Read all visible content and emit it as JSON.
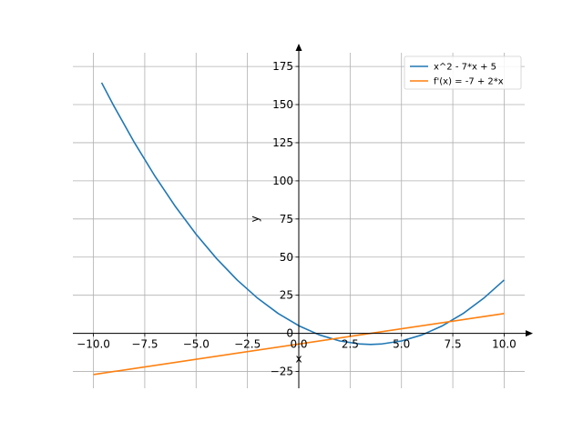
{
  "chart_data": {
    "type": "line",
    "title": "",
    "xlabel": "x",
    "ylabel": "y",
    "xlim": [
      -11.0,
      11.0
    ],
    "ylim": [
      -36.0,
      184.0
    ],
    "x_ticks": [
      -10.0,
      -7.5,
      -5.0,
      -2.5,
      0.0,
      2.5,
      5.0,
      7.5,
      10.0
    ],
    "x_tick_labels": [
      "−10.0",
      "−7.5",
      "−5.0",
      "−2.5",
      "0.0",
      "2.5",
      "5.0",
      "7.5",
      "10.0"
    ],
    "y_ticks": [
      -25,
      0,
      25,
      50,
      75,
      100,
      125,
      150,
      175
    ],
    "y_tick_labels": [
      "−25",
      "0",
      "25",
      "50",
      "75",
      "100",
      "125",
      "150",
      "175"
    ],
    "grid": true,
    "legend_position": "top-right",
    "series": [
      {
        "name": "x^2 - 7*x + 5",
        "color": "#1f77b4",
        "x": [
          -9.6,
          -9.0,
          -8.0,
          -7.0,
          -6.0,
          -5.0,
          -4.0,
          -3.0,
          -2.0,
          -1.0,
          0.0,
          1.0,
          2.0,
          3.0,
          3.5,
          4.0,
          5.0,
          6.0,
          7.0,
          8.0,
          9.0,
          10.0
        ],
        "y": [
          164.36,
          149.0,
          125.0,
          103.0,
          83.0,
          65.0,
          49.0,
          35.0,
          23.0,
          13.0,
          5.0,
          -1.0,
          -5.0,
          -7.0,
          -7.25,
          -7.0,
          -5.0,
          -1.0,
          5.0,
          13.0,
          23.0,
          35.0
        ]
      },
      {
        "name": "f'(x) = -7 + 2*x",
        "color": "#ff7f0e",
        "x": [
          -10.0,
          10.0
        ],
        "y": [
          -27.0,
          13.0
        ]
      }
    ]
  }
}
